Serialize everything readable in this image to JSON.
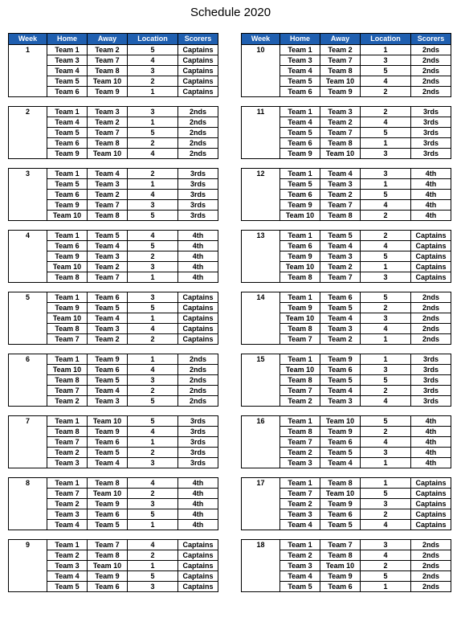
{
  "title": "Schedule 2020",
  "headers": [
    "Week",
    "Home",
    "Away",
    "Location",
    "Scorers"
  ],
  "columns": [
    [
      {
        "week": "1",
        "rows": [
          [
            "Team 1",
            "Team 2",
            "5",
            "Captains"
          ],
          [
            "Team 3",
            "Team 7",
            "4",
            "Captains"
          ],
          [
            "Team 4",
            "Team 8",
            "3",
            "Captains"
          ],
          [
            "Team 5",
            "Team 10",
            "2",
            "Captains"
          ],
          [
            "Team 6",
            "Team 9",
            "1",
            "Captains"
          ]
        ]
      },
      {
        "week": "2",
        "rows": [
          [
            "Team 1",
            "Team 3",
            "3",
            "2nds"
          ],
          [
            "Team 4",
            "Team 2",
            "1",
            "2nds"
          ],
          [
            "Team 5",
            "Team 7",
            "5",
            "2nds"
          ],
          [
            "Team 6",
            "Team 8",
            "2",
            "2nds"
          ],
          [
            "Team 9",
            "Team 10",
            "4",
            "2nds"
          ]
        ]
      },
      {
        "week": "3",
        "rows": [
          [
            "Team 1",
            "Team 4",
            "2",
            "3rds"
          ],
          [
            "Team 5",
            "Team 3",
            "1",
            "3rds"
          ],
          [
            "Team 6",
            "Team 2",
            "4",
            "3rds"
          ],
          [
            "Team 9",
            "Team 7",
            "3",
            "3rds"
          ],
          [
            "Team 10",
            "Team 8",
            "5",
            "3rds"
          ]
        ]
      },
      {
        "week": "4",
        "rows": [
          [
            "Team 1",
            "Team 5",
            "4",
            "4th"
          ],
          [
            "Team 6",
            "Team 4",
            "5",
            "4th"
          ],
          [
            "Team 9",
            "Team 3",
            "2",
            "4th"
          ],
          [
            "Team 10",
            "Team 2",
            "3",
            "4th"
          ],
          [
            "Team 8",
            "Team 7",
            "1",
            "4th"
          ]
        ]
      },
      {
        "week": "5",
        "rows": [
          [
            "Team 1",
            "Team 6",
            "3",
            "Captains"
          ],
          [
            "Team 9",
            "Team 5",
            "5",
            "Captains"
          ],
          [
            "Team 10",
            "Team 4",
            "1",
            "Captains"
          ],
          [
            "Team 8",
            "Team 3",
            "4",
            "Captains"
          ],
          [
            "Team 7",
            "Team 2",
            "2",
            "Captains"
          ]
        ]
      },
      {
        "week": "6",
        "rows": [
          [
            "Team 1",
            "Team 9",
            "1",
            "2nds"
          ],
          [
            "Team 10",
            "Team 6",
            "4",
            "2nds"
          ],
          [
            "Team 8",
            "Team 5",
            "3",
            "2nds"
          ],
          [
            "Team 7",
            "Team 4",
            "2",
            "2nds"
          ],
          [
            "Team 2",
            "Team 3",
            "5",
            "2nds"
          ]
        ]
      },
      {
        "week": "7",
        "rows": [
          [
            "Team 1",
            "Team 10",
            "5",
            "3rds"
          ],
          [
            "Team 8",
            "Team 9",
            "4",
            "3rds"
          ],
          [
            "Team 7",
            "Team 6",
            "1",
            "3rds"
          ],
          [
            "Team 2",
            "Team 5",
            "2",
            "3rds"
          ],
          [
            "Team 3",
            "Team 4",
            "3",
            "3rds"
          ]
        ]
      },
      {
        "week": "8",
        "rows": [
          [
            "Team 1",
            "Team 8",
            "4",
            "4th"
          ],
          [
            "Team 7",
            "Team 10",
            "2",
            "4th"
          ],
          [
            "Team 2",
            "Team 9",
            "3",
            "4th"
          ],
          [
            "Team 3",
            "Team 6",
            "5",
            "4th"
          ],
          [
            "Team 4",
            "Team 5",
            "1",
            "4th"
          ]
        ]
      },
      {
        "week": "9",
        "rows": [
          [
            "Team 1",
            "Team 7",
            "4",
            "Captains"
          ],
          [
            "Team 2",
            "Team 8",
            "2",
            "Captains"
          ],
          [
            "Team 3",
            "Team 10",
            "1",
            "Captains"
          ],
          [
            "Team 4",
            "Team 9",
            "5",
            "Captains"
          ],
          [
            "Team 5",
            "Team 6",
            "3",
            "Captains"
          ]
        ]
      }
    ],
    [
      {
        "week": "10",
        "rows": [
          [
            "Team 1",
            "Team 2",
            "1",
            "2nds"
          ],
          [
            "Team 3",
            "Team 7",
            "3",
            "2nds"
          ],
          [
            "Team 4",
            "Team 8",
            "5",
            "2nds"
          ],
          [
            "Team 5",
            "Team 10",
            "4",
            "2nds"
          ],
          [
            "Team 6",
            "Team 9",
            "2",
            "2nds"
          ]
        ]
      },
      {
        "week": "11",
        "rows": [
          [
            "Team 1",
            "Team 3",
            "2",
            "3rds"
          ],
          [
            "Team 4",
            "Team 2",
            "4",
            "3rds"
          ],
          [
            "Team 5",
            "Team 7",
            "5",
            "3rds"
          ],
          [
            "Team 6",
            "Team 8",
            "1",
            "3rds"
          ],
          [
            "Team 9",
            "Team 10",
            "3",
            "3rds"
          ]
        ]
      },
      {
        "week": "12",
        "rows": [
          [
            "Team 1",
            "Team 4",
            "3",
            "4th"
          ],
          [
            "Team 5",
            "Team 3",
            "1",
            "4th"
          ],
          [
            "Team 6",
            "Team 2",
            "5",
            "4th"
          ],
          [
            "Team 9",
            "Team 7",
            "4",
            "4th"
          ],
          [
            "Team 10",
            "Team 8",
            "2",
            "4th"
          ]
        ]
      },
      {
        "week": "13",
        "rows": [
          [
            "Team 1",
            "Team 5",
            "2",
            "Captains"
          ],
          [
            "Team 6",
            "Team 4",
            "4",
            "Captains"
          ],
          [
            "Team 9",
            "Team 3",
            "5",
            "Captains"
          ],
          [
            "Team 10",
            "Team 2",
            "1",
            "Captains"
          ],
          [
            "Team 8",
            "Team 7",
            "3",
            "Captains"
          ]
        ]
      },
      {
        "week": "14",
        "rows": [
          [
            "Team 1",
            "Team 6",
            "5",
            "2nds"
          ],
          [
            "Team 9",
            "Team 5",
            "2",
            "2nds"
          ],
          [
            "Team 10",
            "Team 4",
            "3",
            "2nds"
          ],
          [
            "Team 8",
            "Team 3",
            "4",
            "2nds"
          ],
          [
            "Team 7",
            "Team 2",
            "1",
            "2nds"
          ]
        ]
      },
      {
        "week": "15",
        "rows": [
          [
            "Team 1",
            "Team 9",
            "1",
            "3rds"
          ],
          [
            "Team 10",
            "Team 6",
            "3",
            "3rds"
          ],
          [
            "Team 8",
            "Team 5",
            "5",
            "3rds"
          ],
          [
            "Team 7",
            "Team 4",
            "2",
            "3rds"
          ],
          [
            "Team 2",
            "Team 3",
            "4",
            "3rds"
          ]
        ]
      },
      {
        "week": "16",
        "rows": [
          [
            "Team 1",
            "Team 10",
            "5",
            "4th"
          ],
          [
            "Team 8",
            "Team 9",
            "2",
            "4th"
          ],
          [
            "Team 7",
            "Team 6",
            "4",
            "4th"
          ],
          [
            "Team 2",
            "Team 5",
            "3",
            "4th"
          ],
          [
            "Team 3",
            "Team 4",
            "1",
            "4th"
          ]
        ]
      },
      {
        "week": "17",
        "rows": [
          [
            "Team 1",
            "Team 8",
            "1",
            "Captains"
          ],
          [
            "Team 7",
            "Team 10",
            "5",
            "Captains"
          ],
          [
            "Team 2",
            "Team 9",
            "3",
            "Captains"
          ],
          [
            "Team 3",
            "Team 6",
            "2",
            "Captains"
          ],
          [
            "Team 4",
            "Team 5",
            "4",
            "Captains"
          ]
        ]
      },
      {
        "week": "18",
        "rows": [
          [
            "Team 1",
            "Team 7",
            "3",
            "2nds"
          ],
          [
            "Team 2",
            "Team 8",
            "4",
            "2nds"
          ],
          [
            "Team 3",
            "Team 10",
            "2",
            "2nds"
          ],
          [
            "Team 4",
            "Team 9",
            "5",
            "2nds"
          ],
          [
            "Team 5",
            "Team 6",
            "1",
            "2nds"
          ]
        ]
      }
    ]
  ]
}
